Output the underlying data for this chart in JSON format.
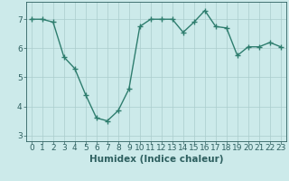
{
  "x": [
    0,
    1,
    2,
    3,
    4,
    5,
    6,
    7,
    8,
    9,
    10,
    11,
    12,
    13,
    14,
    15,
    16,
    17,
    18,
    19,
    20,
    21,
    22,
    23
  ],
  "y": [
    7.0,
    7.0,
    6.9,
    5.7,
    5.3,
    4.4,
    3.6,
    3.5,
    3.85,
    4.6,
    6.75,
    7.0,
    7.0,
    7.0,
    6.55,
    6.9,
    7.3,
    6.75,
    6.7,
    5.75,
    6.05,
    6.05,
    6.2,
    6.05
  ],
  "line_color": "#2e7d6e",
  "marker": "+",
  "bg_color": "#cceaea",
  "grid_color": "#aacccc",
  "xlabel": "Humidex (Indice chaleur)",
  "xlim": [
    -0.5,
    23.5
  ],
  "ylim": [
    2.8,
    7.6
  ],
  "yticks": [
    3,
    4,
    5,
    6,
    7
  ],
  "xticks": [
    0,
    1,
    2,
    3,
    4,
    5,
    6,
    7,
    8,
    9,
    10,
    11,
    12,
    13,
    14,
    15,
    16,
    17,
    18,
    19,
    20,
    21,
    22,
    23
  ],
  "label_color": "#2e6060",
  "tick_color": "#2e6060",
  "xlabel_fontsize": 7.5,
  "tick_fontsize": 6.5,
  "line_width": 1.0,
  "marker_size": 4
}
